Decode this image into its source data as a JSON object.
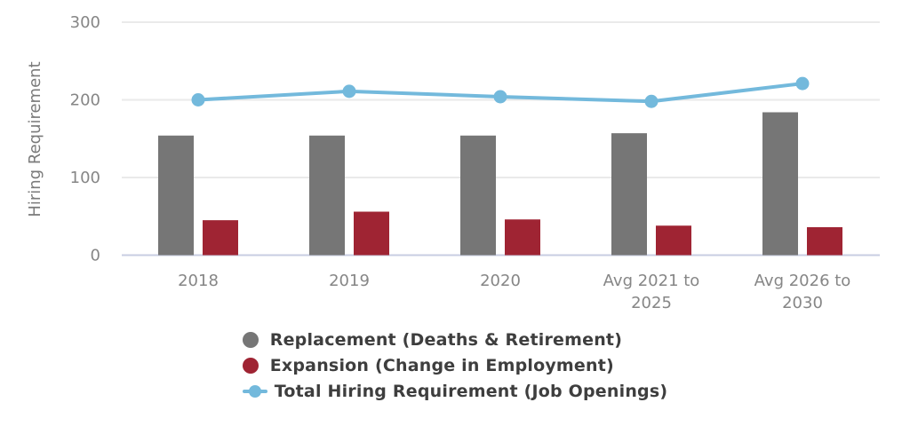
{
  "chart_data": {
    "type": "bar",
    "subtype": "grouped-bars-with-line-overlay",
    "title": "",
    "xlabel": "",
    "ylabel": "Hiring Requirement",
    "categories": [
      "2018",
      "2019",
      "2020",
      "Avg 2021 to 2025",
      "Avg 2026 to 2030"
    ],
    "x_tick_lines": [
      [
        "2018"
      ],
      [
        "2019"
      ],
      [
        "2020"
      ],
      [
        "Avg 2021 to",
        "2025"
      ],
      [
        "Avg 2026 to",
        "2030"
      ]
    ],
    "y_ticks": [
      0,
      100,
      200,
      300
    ],
    "ylim": [
      0,
      300
    ],
    "grid": "horizontal",
    "legend_position": "bottom",
    "series": [
      {
        "name": "Replacement (Deaths & Retirement)",
        "type": "bar",
        "color": "#767676",
        "values": [
          154,
          154,
          154,
          157,
          184
        ]
      },
      {
        "name": "Expansion (Change in Employment)",
        "type": "bar",
        "color": "#9f2433",
        "values": [
          45,
          56,
          46,
          38,
          36
        ]
      },
      {
        "name": "Total Hiring Requirement (Job Openings)",
        "type": "line",
        "color": "#73b9dc",
        "values": [
          200,
          211,
          204,
          198,
          221
        ]
      }
    ],
    "colors": {
      "grid_line": "#eaeaea",
      "axis_base_line": "#c8cde2",
      "tick_label": "#868686",
      "axis_title": "#7a7a7a",
      "legend_text": "#3e3e3e",
      "background": "#ffffff"
    }
  }
}
